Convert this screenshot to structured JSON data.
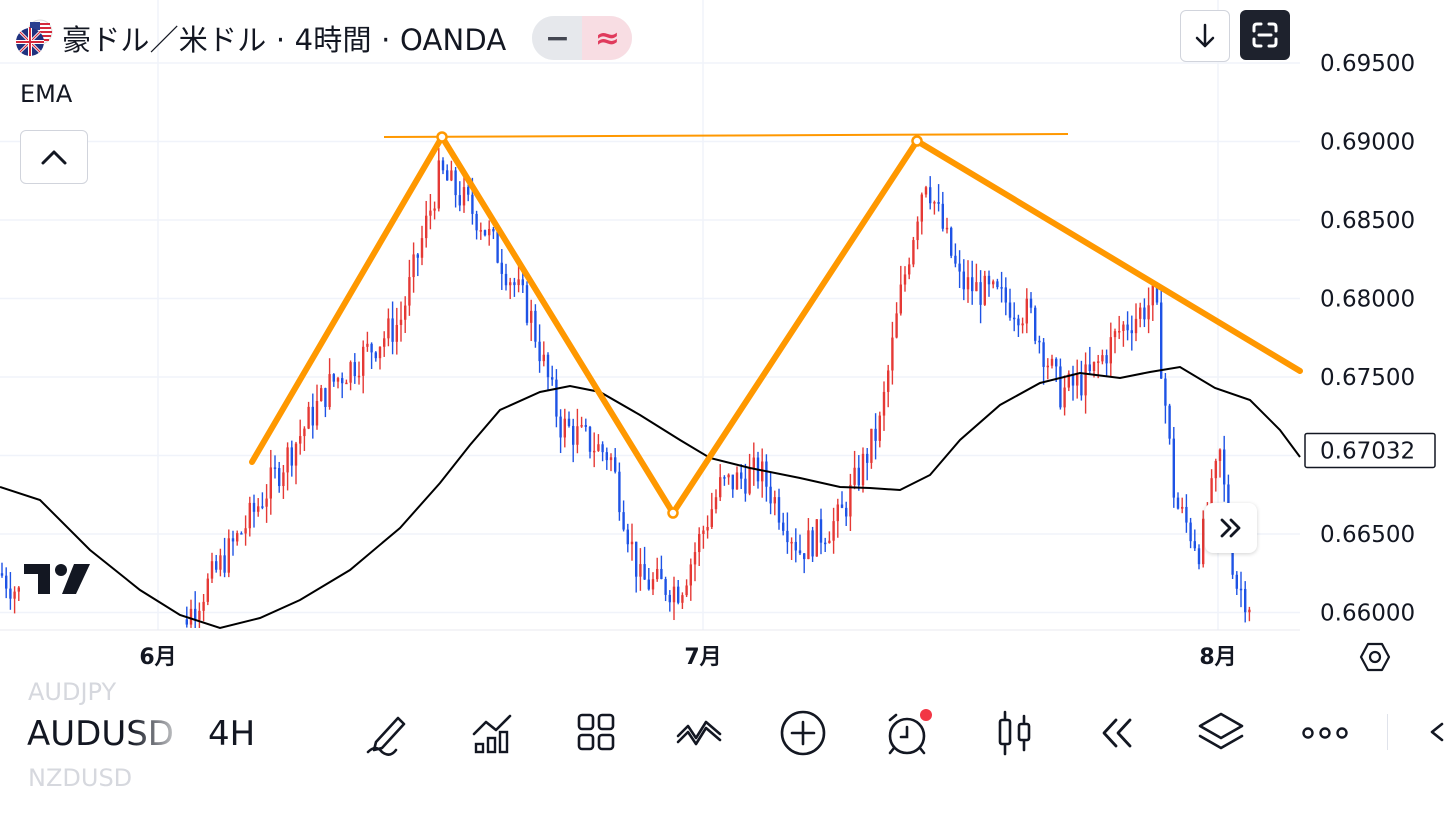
{
  "header": {
    "title": "豪ドル／米ドル · 4時間 · OANDA",
    "flag_icon": "au-us-flag-icon",
    "pill_left": "−",
    "pill_right": "≈"
  },
  "indicator": {
    "label": "EMA"
  },
  "price_axis": {
    "labels": [
      "0.69500",
      "0.69000",
      "0.68500",
      "0.68000",
      "0.67500",
      "0.66500",
      "0.66000"
    ],
    "current_price": "0.67032"
  },
  "time_axis": {
    "labels": [
      "6月",
      "7月",
      "8月"
    ]
  },
  "bottom_bar": {
    "symbol_prev": "AUDJPY",
    "symbol_current": "AUDUSD",
    "symbol_next": "NZDUSD",
    "interval": "4H",
    "tools": [
      "draw-pen-icon",
      "indicators-icon",
      "templates-icon",
      "compare-icon",
      "add-icon",
      "alert-icon",
      "candles-icon",
      "replay-icon",
      "layers-icon",
      "more-icon",
      "collapse-arrow-icon"
    ]
  },
  "colors": {
    "up": "#e53935",
    "down": "#1e53e5",
    "pattern_line": "#ff9800",
    "ema_line": "#000000",
    "alert_dot": "#f23645"
  }
}
